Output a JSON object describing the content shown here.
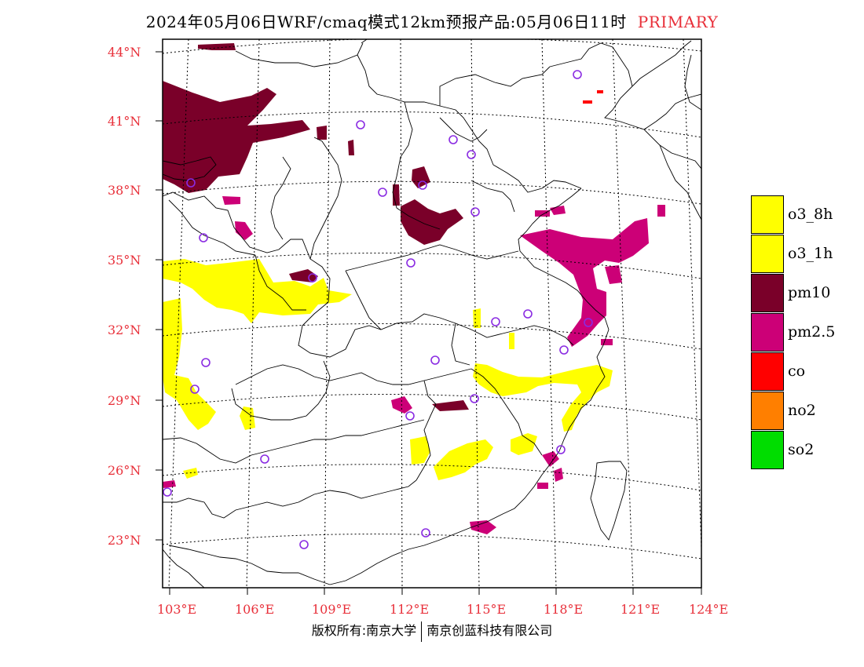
{
  "title": {
    "main": "2024年05月06日WRF/cmaq模式12km预报产品:05月06日11时",
    "tag": "PRIMARY"
  },
  "map": {
    "projection": "lambert-conformal",
    "lat_labels": [
      "44°N",
      "41°N",
      "38°N",
      "35°N",
      "32°N",
      "29°N",
      "26°N",
      "23°N"
    ],
    "lon_labels": [
      "103°E",
      "106°E",
      "109°E",
      "112°E",
      "115°E",
      "118°E",
      "121°E",
      "124°E"
    ],
    "label_color": "#e8303a",
    "station_marker_color": "#8a2be2",
    "grid": "dotted"
  },
  "legend": {
    "items": [
      {
        "label": "o3_8h",
        "color": "#ffff00"
      },
      {
        "label": "o3_1h",
        "color": "#ffff00"
      },
      {
        "label": "pm10",
        "color": "#7a0029"
      },
      {
        "label": "pm2.5",
        "color": "#cc0077"
      },
      {
        "label": "co",
        "color": "#ff0000"
      },
      {
        "label": "no2",
        "color": "#ff7f00"
      },
      {
        "label": "so2",
        "color": "#00dd00"
      }
    ]
  },
  "footer": {
    "left": "版权所有:南京大学",
    "right": "南京创蓝科技有限公司"
  }
}
